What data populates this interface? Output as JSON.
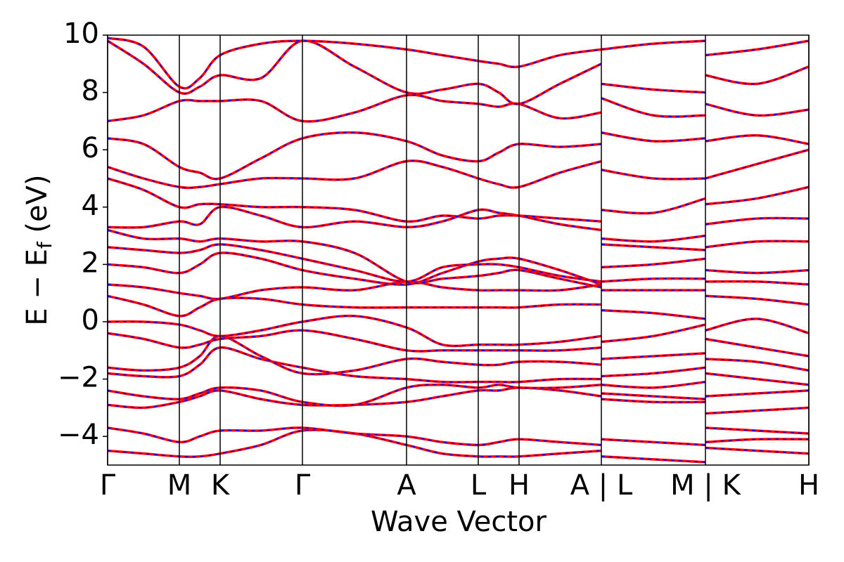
{
  "chart_data": {
    "type": "line",
    "xlabel": "Wave Vector",
    "ylabel": {
      "main": "E − E",
      "sub": "f",
      "rest": " (eV)"
    },
    "xlim": [
      0,
      9.97
    ],
    "ylim": [
      -5,
      10
    ],
    "xticks": [
      {
        "value": 0,
        "label": "Γ"
      },
      {
        "value": 1.02,
        "label": "M"
      },
      {
        "value": 1.6,
        "label": "K"
      },
      {
        "value": 2.77,
        "label": "Γ"
      },
      {
        "value": 4.25,
        "label": "A"
      },
      {
        "value": 5.27,
        "label": "L"
      },
      {
        "value": 5.85,
        "label": "H"
      },
      {
        "value": 7.02,
        "label": "A | L"
      },
      {
        "value": 8.5,
        "label": "M | K"
      },
      {
        "value": 9.97,
        "label": "H"
      }
    ],
    "yticks": [
      {
        "value": -4,
        "label": "−4"
      },
      {
        "value": -2,
        "label": "−2"
      },
      0,
      2,
      4,
      6,
      8,
      10
    ],
    "overlay_color": "#0000ff",
    "x": [
      0,
      0.51,
      1.02,
      1.31,
      1.6,
      2.18,
      2.77,
      3.51,
      4.25,
      4.76,
      5.27,
      5.56,
      5.85,
      6.43,
      7.02,
      7.02,
      7.02,
      7.76,
      8.5,
      8.5,
      8.5,
      9.23,
      9.97
    ],
    "series": [
      {
        "color": "#ff0000",
        "values": [
          -4.5,
          -4.6,
          -4.7,
          -4.7,
          -4.6,
          -4.3,
          -3.8,
          -3.9,
          -4.3,
          -4.6,
          -4.7,
          -4.7,
          -4.7,
          -4.6,
          -4.5,
          null,
          -4.7,
          -4.8,
          -4.9,
          null,
          -4.4,
          -4.5,
          -4.6
        ]
      },
      {
        "color": "#ff0000",
        "values": [
          -3.7,
          -3.9,
          -4.2,
          -4.0,
          -3.8,
          -3.8,
          -3.7,
          -3.9,
          -4.0,
          -4.2,
          -4.3,
          -4.2,
          -4.1,
          -4.2,
          -4.3,
          null,
          -4.1,
          -4.2,
          -4.3,
          null,
          -4.2,
          -4.1,
          -4.1
        ]
      },
      {
        "color": "#ff0000",
        "values": [
          -2.9,
          -3.0,
          -2.8,
          -2.6,
          -2.4,
          -2.7,
          -2.9,
          -2.9,
          -2.8,
          -2.6,
          -2.4,
          -2.4,
          -2.3,
          -2.4,
          -2.6,
          null,
          -2.7,
          -2.8,
          -2.8,
          null,
          -3.7,
          -3.8,
          -3.9
        ]
      },
      {
        "color": "#ff0000",
        "values": [
          -2.4,
          -2.6,
          -2.7,
          -2.5,
          -2.3,
          -2.4,
          -2.8,
          -2.9,
          -2.3,
          -2.2,
          -2.3,
          -2.2,
          -2.3,
          -2.3,
          -2.2,
          null,
          -2.5,
          -2.6,
          -2.7,
          null,
          -3.2,
          -3.1,
          -3.0
        ]
      },
      {
        "color": "#ff0000",
        "values": [
          -1.8,
          -1.9,
          -1.9,
          -1.5,
          -0.9,
          -1.3,
          -1.6,
          -1.9,
          -2.0,
          -2.1,
          -2.1,
          -2.1,
          -2.1,
          -2.0,
          -2.0,
          null,
          -2.2,
          -2.3,
          -2.1,
          null,
          -2.6,
          -2.5,
          -2.4
        ]
      },
      {
        "color": "#ff0000",
        "values": [
          -1.6,
          -1.7,
          -1.6,
          -1.2,
          -0.5,
          -1.2,
          -1.8,
          -1.7,
          -1.3,
          -1.4,
          -1.5,
          -1.5,
          -1.4,
          -1.4,
          -1.5,
          null,
          -1.9,
          -1.8,
          -1.6,
          null,
          -1.8,
          -2.0,
          -2.2
        ]
      },
      {
        "color": "#ff0000",
        "values": [
          -0.4,
          -0.6,
          -0.9,
          -0.8,
          -0.6,
          -0.5,
          -0.3,
          -0.6,
          -1.0,
          -1.0,
          -1.0,
          -1.0,
          -1.0,
          -1.0,
          -0.9,
          null,
          -1.3,
          -1.2,
          -1.1,
          null,
          -1.3,
          -1.4,
          -1.7
        ]
      },
      {
        "color": "#ff0000",
        "values": [
          0.0,
          0.0,
          -0.1,
          -0.3,
          -0.5,
          -0.3,
          0.0,
          0.2,
          -0.2,
          -0.8,
          -0.8,
          -0.8,
          -0.8,
          -0.7,
          -0.5,
          null,
          -0.7,
          -0.5,
          -0.1,
          null,
          -0.6,
          -0.9,
          -1.2
        ]
      },
      {
        "color": "#ff0000",
        "values": [
          0.9,
          0.6,
          0.2,
          0.5,
          0.8,
          0.8,
          0.6,
          0.5,
          0.5,
          0.5,
          0.5,
          0.5,
          0.5,
          0.6,
          0.6,
          null,
          0.4,
          0.3,
          0.1,
          null,
          -0.3,
          0.1,
          -0.4
        ]
      },
      {
        "color": "#ff0000",
        "values": [
          1.3,
          1.2,
          1.0,
          0.9,
          0.8,
          1.1,
          1.2,
          1.1,
          1.4,
          1.2,
          1.1,
          1.1,
          1.1,
          1.1,
          1.3,
          null,
          1.1,
          1.1,
          1.1,
          null,
          0.9,
          0.8,
          0.6
        ]
      },
      {
        "color": "#ff0000",
        "values": [
          2.0,
          1.9,
          1.7,
          2.0,
          2.4,
          2.2,
          1.8,
          1.5,
          1.3,
          1.7,
          2.1,
          2.2,
          2.2,
          1.8,
          1.3,
          null,
          1.4,
          1.5,
          1.5,
          null,
          1.4,
          1.4,
          1.3
        ]
      },
      {
        "color": "#ff0000",
        "values": [
          2.6,
          2.5,
          2.4,
          2.5,
          2.7,
          2.5,
          2.2,
          1.8,
          1.4,
          1.9,
          2.0,
          2.0,
          1.9,
          1.6,
          1.4,
          null,
          1.9,
          2.0,
          2.2,
          null,
          1.8,
          1.7,
          1.8
        ]
      },
      {
        "color": "#ff0000",
        "values": [
          3.2,
          2.9,
          2.9,
          2.8,
          2.9,
          2.8,
          2.8,
          2.4,
          1.4,
          1.5,
          1.6,
          1.7,
          1.8,
          1.5,
          1.2,
          null,
          2.7,
          2.6,
          2.5,
          null,
          2.6,
          2.8,
          2.8
        ]
      },
      {
        "color": "#ff0000",
        "values": [
          3.3,
          3.3,
          3.5,
          3.4,
          4.0,
          3.7,
          3.3,
          3.5,
          3.3,
          3.5,
          3.9,
          3.8,
          3.7,
          3.4,
          3.2,
          null,
          2.9,
          2.8,
          3.0,
          null,
          3.4,
          3.6,
          3.6
        ]
      },
      {
        "color": "#ff0000",
        "values": [
          5.0,
          4.6,
          4.0,
          4.1,
          4.1,
          4.0,
          4.0,
          3.9,
          3.5,
          3.7,
          3.6,
          3.7,
          3.7,
          3.6,
          3.5,
          null,
          3.9,
          3.8,
          4.3,
          null,
          4.1,
          4.3,
          4.7
        ]
      },
      {
        "color": "#ff0000",
        "values": [
          5.4,
          5.0,
          4.7,
          4.7,
          4.8,
          5.0,
          5.0,
          5.0,
          5.6,
          5.4,
          5.0,
          4.8,
          4.7,
          5.2,
          5.6,
          null,
          5.3,
          5.0,
          5.0,
          null,
          5.0,
          5.5,
          6.0
        ]
      },
      {
        "color": "#ff0000",
        "values": [
          6.4,
          6.2,
          5.4,
          5.2,
          5.0,
          5.7,
          6.4,
          6.6,
          6.3,
          5.8,
          5.6,
          5.9,
          6.2,
          6.1,
          6.2,
          null,
          6.6,
          6.3,
          6.4,
          null,
          6.3,
          6.5,
          6.2
        ]
      },
      {
        "color": "#ff0000",
        "values": [
          7.0,
          7.2,
          7.7,
          7.7,
          7.7,
          7.7,
          7.0,
          7.3,
          7.9,
          7.7,
          7.6,
          7.5,
          7.6,
          7.1,
          7.3,
          null,
          7.8,
          7.2,
          7.2,
          null,
          7.6,
          7.2,
          7.4
        ]
      },
      {
        "color": "#ff0000",
        "values": [
          9.8,
          9.0,
          8.0,
          8.2,
          8.6,
          8.5,
          9.8,
          8.9,
          8.0,
          8.1,
          8.3,
          8.0,
          7.6,
          8.3,
          9.0,
          null,
          8.3,
          8.1,
          8.0,
          null,
          8.6,
          8.3,
          8.9
        ]
      },
      {
        "color": "#ff0000",
        "values": [
          9.9,
          9.6,
          8.2,
          8.5,
          9.3,
          9.7,
          9.8,
          9.7,
          9.5,
          9.3,
          9.1,
          9.0,
          8.9,
          9.3,
          9.5,
          null,
          9.5,
          9.7,
          9.8,
          null,
          9.3,
          9.5,
          9.8
        ]
      }
    ]
  }
}
